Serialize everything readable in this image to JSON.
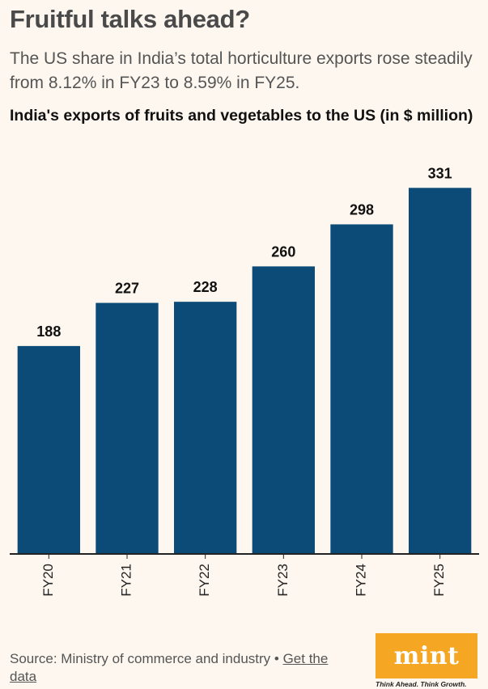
{
  "header": {
    "title": "Fruitful talks ahead?",
    "subtitle": "The US share in India’s total horticulture exports rose steadily from 8.12% in FY23 to 8.59% in FY25."
  },
  "chart_data": {
    "type": "bar",
    "title": "India's exports of fruits and vegetables to the US (in $ million)",
    "categories": [
      "FY20",
      "FY21",
      "FY22",
      "FY23",
      "FY24",
      "FY25"
    ],
    "values": [
      188,
      227,
      228,
      260,
      298,
      331
    ],
    "xlabel": "",
    "ylabel": "",
    "ylim": [
      0,
      340
    ],
    "grid": false,
    "bar_color": "#0c4a78"
  },
  "footer": {
    "source_prefix": "Source: Ministry of commerce and industry",
    "separator": " • ",
    "source_link": "Get the data"
  },
  "branding": {
    "logo": "mint",
    "tagline": "Think Ahead. Think Growth.",
    "logo_color": "#f5a623"
  }
}
